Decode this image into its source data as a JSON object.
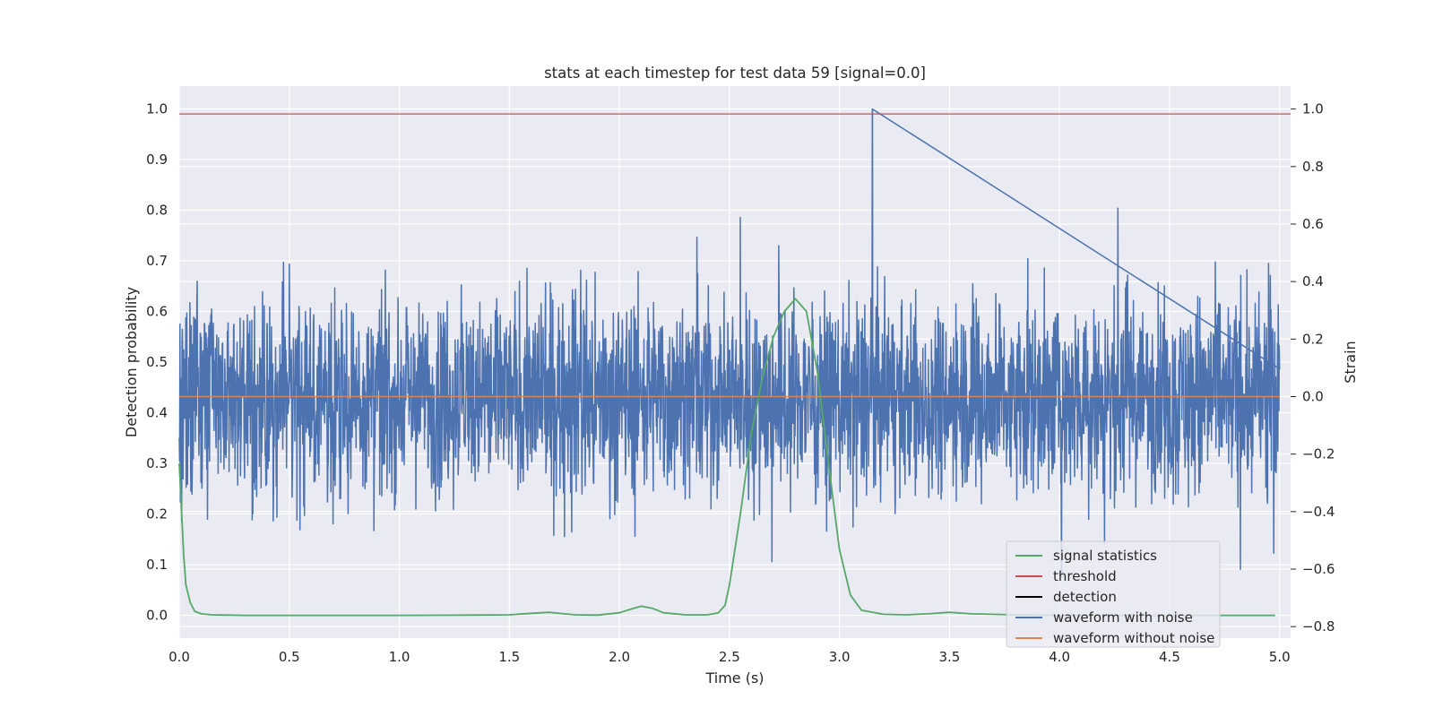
{
  "chart_data": {
    "type": "line",
    "title": "stats at each timestep for test data 59 [signal=0.0]",
    "xlabel": "Time (s)",
    "ylabel": "Detection probability",
    "ylabel_right": "Strain",
    "xlim": [
      0.0,
      5.05
    ],
    "ylim": [
      -0.045,
      1.045
    ],
    "ylim_right": [
      -0.84,
      1.08
    ],
    "x_ticks": [
      "0.0",
      "0.5",
      "1.0",
      "1.5",
      "2.0",
      "2.5",
      "3.0",
      "3.5",
      "4.0",
      "4.5",
      "5.0"
    ],
    "y_ticks": [
      "0.0",
      "0.1",
      "0.2",
      "0.3",
      "0.4",
      "0.5",
      "0.6",
      "0.7",
      "0.8",
      "0.9",
      "1.0"
    ],
    "y_ticks_right": [
      "−0.8",
      "−0.6",
      "−0.4",
      "−0.2",
      "0.0",
      "0.2",
      "0.4",
      "0.6",
      "0.8",
      "1.0"
    ],
    "grid": true,
    "legend_position": "lower-right",
    "series": [
      {
        "name": "signal statistics",
        "axis": "left",
        "color": "#55a868",
        "x": [
          0.0,
          0.02,
          0.03,
          0.05,
          0.07,
          0.1,
          0.15,
          0.3,
          0.6,
          1.0,
          1.3,
          1.5,
          1.6,
          1.68,
          1.75,
          1.8,
          1.9,
          2.0,
          2.05,
          2.1,
          2.15,
          2.2,
          2.3,
          2.4,
          2.45,
          2.48,
          2.5,
          2.55,
          2.6,
          2.65,
          2.7,
          2.75,
          2.8,
          2.85,
          2.9,
          2.95,
          3.0,
          3.05,
          3.1,
          3.2,
          3.3,
          3.4,
          3.5,
          3.6,
          3.8,
          4.0,
          4.5,
          4.98
        ],
        "values": [
          0.3,
          0.12,
          0.06,
          0.025,
          0.008,
          0.003,
          0.001,
          0.0,
          0.0,
          0.0,
          0.0005,
          0.001,
          0.004,
          0.006,
          0.003,
          0.001,
          0.0005,
          0.005,
          0.012,
          0.018,
          0.014,
          0.005,
          0.001,
          0.001,
          0.005,
          0.02,
          0.06,
          0.2,
          0.36,
          0.47,
          0.55,
          0.6,
          0.625,
          0.6,
          0.48,
          0.3,
          0.13,
          0.04,
          0.01,
          0.002,
          0.001,
          0.003,
          0.006,
          0.003,
          0.001,
          0.0,
          0.0,
          0.0
        ]
      },
      {
        "name": "threshold",
        "axis": "left",
        "color": "#c44e52",
        "x": [
          0.0,
          5.05
        ],
        "values": [
          0.99,
          0.99
        ]
      },
      {
        "name": "detection",
        "axis": "left",
        "color": "#000000",
        "x": [],
        "values": []
      },
      {
        "name": "waveform with noise",
        "axis": "right",
        "color": "#4c72b0",
        "x_range": [
          0.0,
          5.0
        ],
        "peak_x": 3.15,
        "max": 1.0,
        "min": -0.77,
        "typical_band": [
          -0.35,
          0.35
        ]
      },
      {
        "name": "waveform without noise",
        "axis": "right",
        "color": "#dd8452",
        "x": [
          0.0,
          5.0
        ],
        "values": [
          0.0,
          0.0
        ]
      }
    ]
  }
}
